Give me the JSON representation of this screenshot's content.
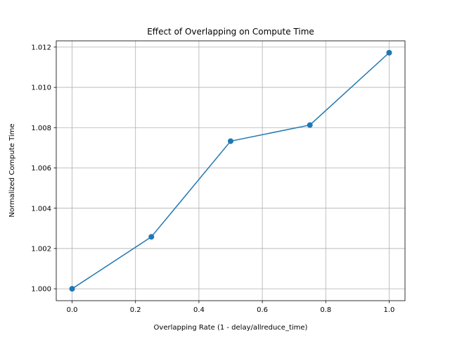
{
  "chart_data": {
    "type": "line",
    "title": "Effect of Overlapping on Compute Time",
    "xlabel": "Overlapping Rate (1 - delay/allreduce_time)",
    "ylabel": "Normalized Compute Time",
    "x": [
      0.0,
      0.25,
      0.5,
      0.75,
      1.0
    ],
    "series": [
      {
        "values": [
          1.0,
          1.00258,
          1.00733,
          1.00813,
          1.01172
        ],
        "color": "#1f77b4",
        "marker": "circle"
      }
    ],
    "xlim": [
      -0.05,
      1.05
    ],
    "ylim": [
      0.99941,
      1.01231
    ],
    "xticks": [
      0.0,
      0.2,
      0.4,
      0.6,
      0.8,
      1.0
    ],
    "xtick_labels": [
      "0.0",
      "0.2",
      "0.4",
      "0.6",
      "0.8",
      "1.0"
    ],
    "yticks": [
      1.0,
      1.002,
      1.004,
      1.006,
      1.008,
      1.01,
      1.012
    ],
    "ytick_labels": [
      "1.000",
      "1.002",
      "1.004",
      "1.006",
      "1.008",
      "1.010",
      "1.012"
    ],
    "grid": true,
    "legend": false
  }
}
